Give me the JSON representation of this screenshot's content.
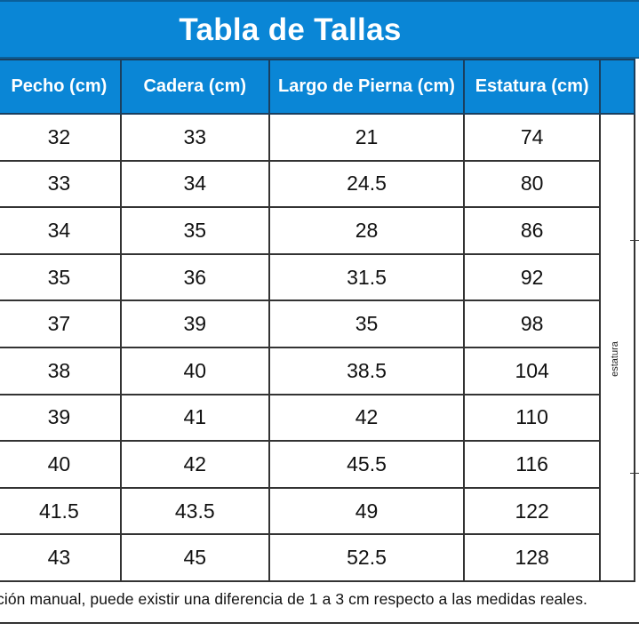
{
  "title": "Tabla de Tallas",
  "columns": [
    "Pecho (cm)",
    "Cadera (cm)",
    "Largo de Pierna (cm)",
    "Estatura (cm)"
  ],
  "rows": [
    [
      "32",
      "33",
      "21",
      "74"
    ],
    [
      "33",
      "34",
      "24.5",
      "80"
    ],
    [
      "34",
      "35",
      "28",
      "86"
    ],
    [
      "35",
      "36",
      "31.5",
      "92"
    ],
    [
      "37",
      "39",
      "35",
      "98"
    ],
    [
      "38",
      "40",
      "38.5",
      "104"
    ],
    [
      "39",
      "41",
      "42",
      "110"
    ],
    [
      "40",
      "42",
      "45.5",
      "116"
    ],
    [
      "41.5",
      "43.5",
      "49",
      "122"
    ],
    [
      "43",
      "45",
      "52.5",
      "128"
    ]
  ],
  "figure": {
    "label": "estatura"
  },
  "footnote": "ción manual, puede existir una diferencia de 1 a 3 cm respecto a las medidas reales."
}
